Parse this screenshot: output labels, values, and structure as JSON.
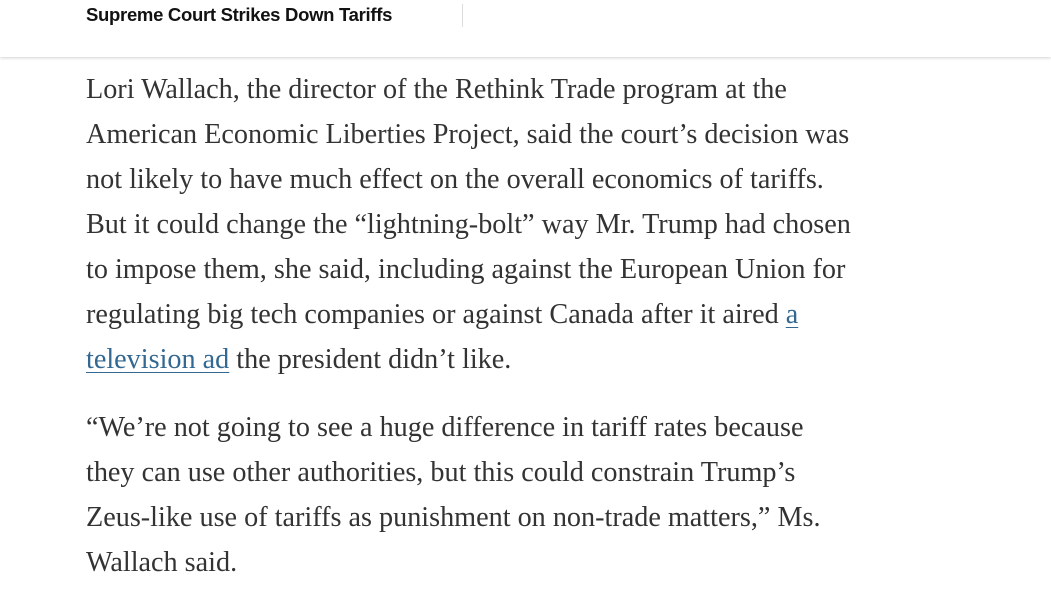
{
  "header": {
    "title": "Supreme Court Strikes Down Tariffs"
  },
  "article": {
    "paragraphs": [
      {
        "lines": [
          "Lori Wallach, the director of the Rethink Trade program at the",
          "American Economic Liberties Project, said the court’s decision was",
          "not likely to have much effect on the overall economics of tariffs.",
          "But it could change the “lightning-bolt” way Mr. Trump had chosen",
          "to impose them, she said, including against the European Union for",
          "regulating big tech companies or against Canada after it aired "
        ],
        "link_part1": "a",
        "link_part2": "television ad",
        "after_link": " the president didn’t like."
      },
      {
        "lines": [
          "“We’re not going to see a huge difference in tariff rates because",
          "they can use other authorities, but this could constrain Trump’s",
          "Zeus-like use of tariffs as punishment on non-trade matters,” Ms.",
          "Wallach said."
        ]
      }
    ]
  },
  "colors": {
    "text": "#333333",
    "link": "#326891",
    "header_text": "#121212"
  }
}
